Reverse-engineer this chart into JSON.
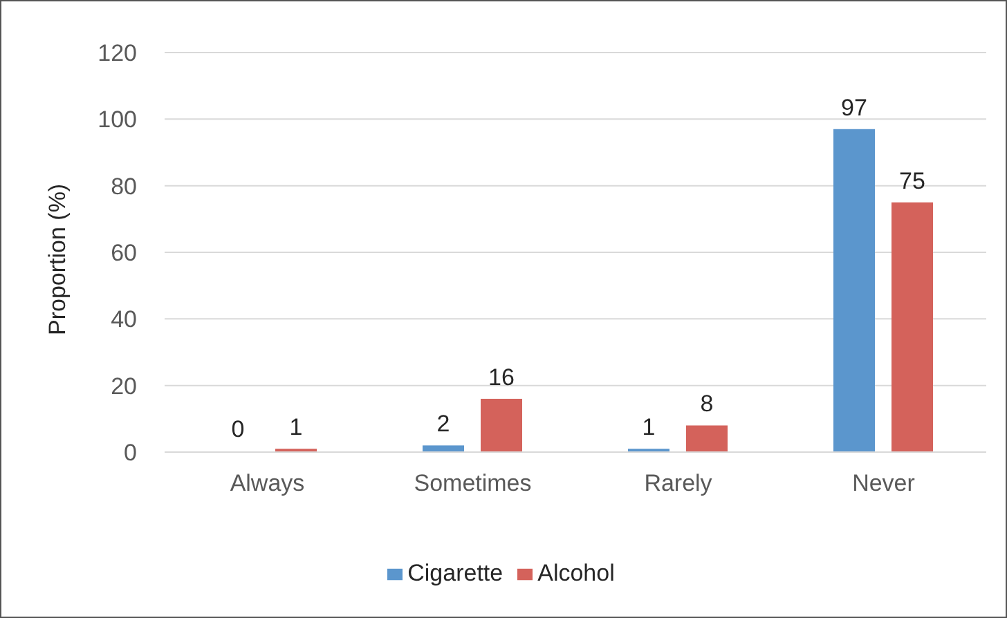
{
  "chart_data": {
    "type": "bar",
    "categories": [
      "Always",
      "Sometimes",
      "Rarely",
      "Never"
    ],
    "series": [
      {
        "name": "Cigarette",
        "color": "#5b96cd",
        "values": [
          0,
          2,
          1,
          97
        ]
      },
      {
        "name": "Alcohol",
        "color": "#d4625b",
        "values": [
          1,
          16,
          8,
          75
        ]
      }
    ],
    "ylabel": "Proportion (%)",
    "ylim": [
      0,
      120
    ],
    "yticks": [
      0,
      20,
      40,
      60,
      80,
      100,
      120
    ],
    "grid": "y",
    "legend": "bottom",
    "data_labels": true
  }
}
